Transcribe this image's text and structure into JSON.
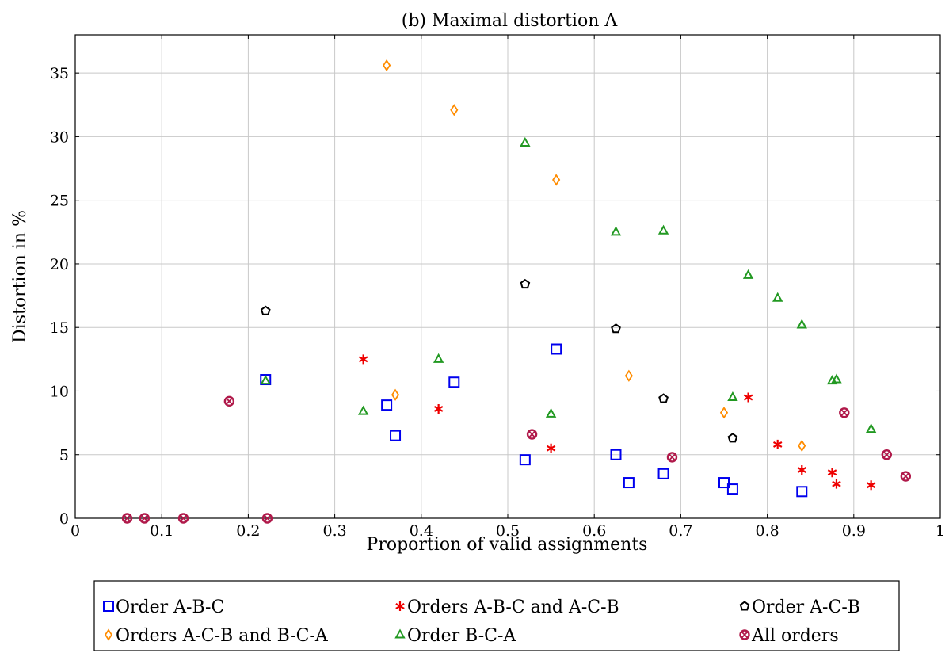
{
  "chart_data": {
    "type": "scatter",
    "title": "(b) Maximal distortion Λ",
    "xlabel": "Proportion of valid assignments",
    "ylabel": "Distortion in %",
    "xlim": [
      0,
      1
    ],
    "ylim": [
      0,
      38
    ],
    "x_ticks": [
      "0",
      "0.1",
      "0.2",
      "0.3",
      "0.4",
      "0.5",
      "0.6",
      "0.7",
      "0.8",
      "0.9",
      "1"
    ],
    "y_ticks": [
      "0",
      "5",
      "10",
      "15",
      "20",
      "25",
      "30",
      "35"
    ],
    "grid": true,
    "legend_position": "bottom",
    "series": [
      {
        "name": "Order A-B-C",
        "marker": "square",
        "color": "#0000ee",
        "points": [
          [
            0.22,
            10.9
          ],
          [
            0.36,
            8.9
          ],
          [
            0.37,
            6.5
          ],
          [
            0.438,
            10.7
          ],
          [
            0.52,
            4.6
          ],
          [
            0.556,
            13.3
          ],
          [
            0.625,
            5.0
          ],
          [
            0.64,
            2.8
          ],
          [
            0.68,
            3.5
          ],
          [
            0.75,
            2.8
          ],
          [
            0.76,
            2.3
          ],
          [
            0.84,
            2.1
          ]
        ]
      },
      {
        "name": "Orders A-B-C and A-C-B",
        "marker": "star",
        "color": "#ee0000",
        "points": [
          [
            0.333,
            12.5
          ],
          [
            0.42,
            8.6
          ],
          [
            0.55,
            5.5
          ],
          [
            0.778,
            9.5
          ],
          [
            0.812,
            5.8
          ],
          [
            0.84,
            3.8
          ],
          [
            0.875,
            3.6
          ],
          [
            0.88,
            2.7
          ],
          [
            0.92,
            2.6
          ]
        ]
      },
      {
        "name": "Order A-C-B",
        "marker": "pentagon",
        "color": "#000000",
        "points": [
          [
            0.22,
            16.3
          ],
          [
            0.52,
            18.4
          ],
          [
            0.625,
            14.9
          ],
          [
            0.68,
            9.4
          ],
          [
            0.76,
            6.3
          ]
        ]
      },
      {
        "name": "Orders A-C-B and B-C-A",
        "marker": "diamond",
        "color": "#ff8c00",
        "points": [
          [
            0.36,
            35.6
          ],
          [
            0.438,
            32.1
          ],
          [
            0.37,
            9.7
          ],
          [
            0.556,
            26.6
          ],
          [
            0.64,
            11.2
          ],
          [
            0.75,
            8.3
          ],
          [
            0.84,
            5.7
          ]
        ]
      },
      {
        "name": "Order B-C-A",
        "marker": "triangle",
        "color": "#229922",
        "points": [
          [
            0.22,
            10.8
          ],
          [
            0.333,
            8.4
          ],
          [
            0.42,
            12.5
          ],
          [
            0.52,
            29.5
          ],
          [
            0.55,
            8.2
          ],
          [
            0.625,
            22.5
          ],
          [
            0.68,
            22.6
          ],
          [
            0.76,
            9.5
          ],
          [
            0.778,
            19.1
          ],
          [
            0.812,
            17.3
          ],
          [
            0.84,
            15.2
          ],
          [
            0.875,
            10.8
          ],
          [
            0.88,
            10.9
          ],
          [
            0.92,
            7.0
          ]
        ]
      },
      {
        "name": "All orders",
        "marker": "circle-x",
        "color": "#b0194a",
        "points": [
          [
            0.06,
            0.0
          ],
          [
            0.08,
            0.0
          ],
          [
            0.125,
            0.0
          ],
          [
            0.178,
            9.2
          ],
          [
            0.222,
            0.0
          ],
          [
            0.528,
            6.6
          ],
          [
            0.69,
            4.8
          ],
          [
            0.889,
            8.3
          ],
          [
            0.938,
            5.0
          ],
          [
            0.96,
            3.3
          ]
        ]
      }
    ]
  }
}
